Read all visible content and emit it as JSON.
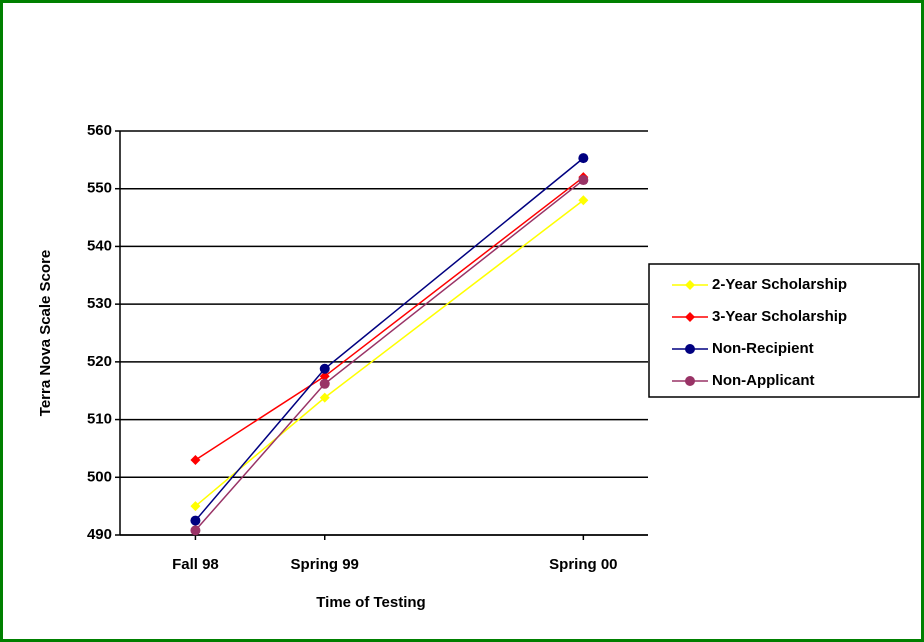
{
  "chart_data": {
    "type": "line",
    "x_label": "Time of Testing",
    "y_label": "Terra Nova Scale Score",
    "x": [
      0,
      6,
      18
    ],
    "xlim": [
      -3.5,
      21
    ],
    "xticks": [
      {
        "value": 0,
        "label": "Fall 98"
      },
      {
        "value": 6,
        "label": "Spring 99"
      },
      {
        "value": 18,
        "label": "Spring 00"
      }
    ],
    "ylim": [
      490,
      560
    ],
    "yticks": [
      490,
      500,
      510,
      520,
      530,
      540,
      550,
      560
    ],
    "grid": true,
    "legend": "right",
    "series": [
      {
        "name": "2-Year Scholarship",
        "color": "#ffff00",
        "marker": "diamond",
        "values": [
          495,
          513.8,
          548
        ]
      },
      {
        "name": "3-Year Scholarship",
        "color": "#ff0000",
        "marker": "diamond",
        "values": [
          503,
          517.5,
          552
        ]
      },
      {
        "name": "Non-Recipient",
        "color": "#000080",
        "marker": "circle",
        "values": [
          492.5,
          518.8,
          555.3
        ]
      },
      {
        "name": "Non-Applicant",
        "color": "#993366",
        "marker": "circle",
        "values": [
          490.8,
          516.2,
          551.5
        ]
      }
    ]
  }
}
